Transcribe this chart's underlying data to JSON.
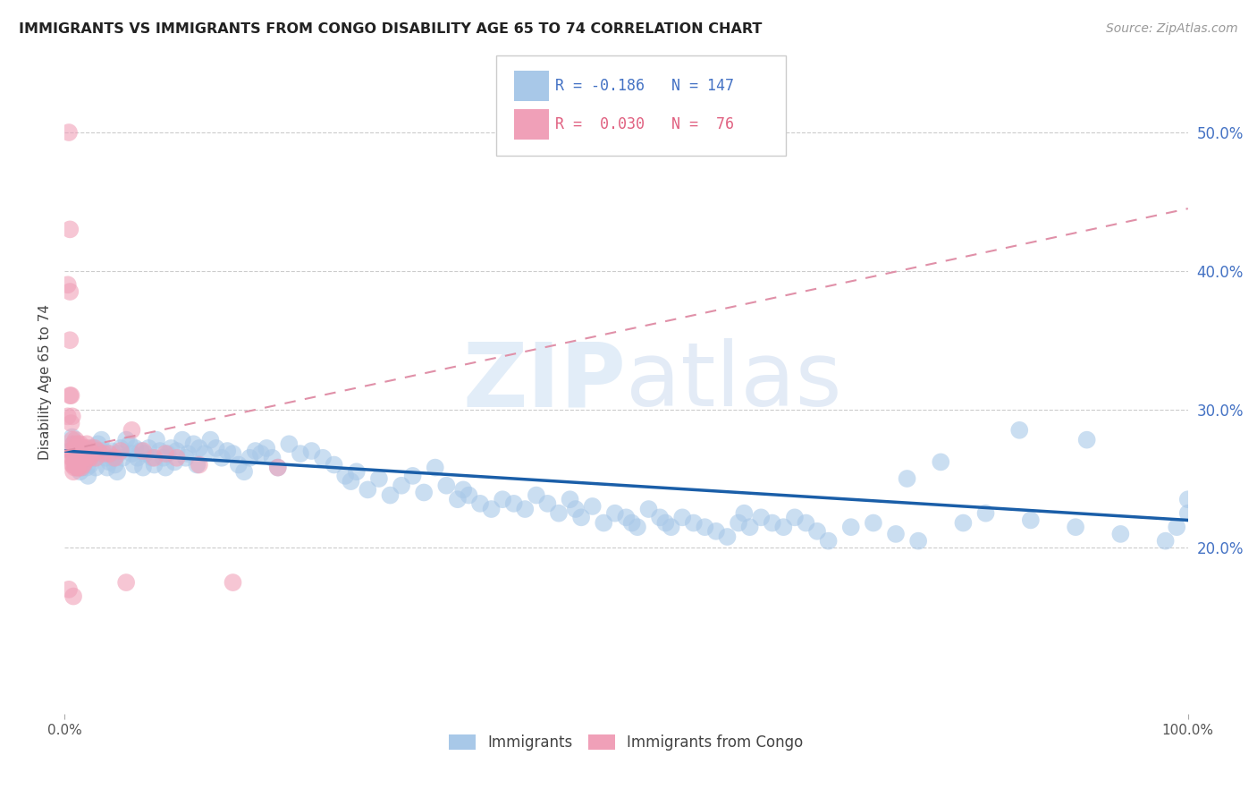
{
  "title": "IMMIGRANTS VS IMMIGRANTS FROM CONGO DISABILITY AGE 65 TO 74 CORRELATION CHART",
  "source": "Source: ZipAtlas.com",
  "ylabel": "Disability Age 65 to 74",
  "xlim": [
    0.0,
    1.0
  ],
  "ylim": [
    0.08,
    0.56
  ],
  "y_ticks_right": [
    0.2,
    0.3,
    0.4,
    0.5
  ],
  "y_tick_labels_right": [
    "20.0%",
    "30.0%",
    "40.0%",
    "50.0%"
  ],
  "color_immigrants": "#a8c8e8",
  "color_congo": "#f0a0b8",
  "line_color_immigrants": "#1a5ea8",
  "line_color_congo": "#e8a0b0",
  "background_color": "#ffffff",
  "watermark_text": "ZIPatlas",
  "r_immigrants": -0.186,
  "n_immigrants": 147,
  "r_congo": 0.03,
  "n_congo": 76,
  "immigrants_x": [
    0.005,
    0.007,
    0.008,
    0.009,
    0.01,
    0.011,
    0.012,
    0.013,
    0.014,
    0.015,
    0.016,
    0.017,
    0.018,
    0.019,
    0.02,
    0.021,
    0.022,
    0.023,
    0.025,
    0.027,
    0.028,
    0.03,
    0.032,
    0.033,
    0.035,
    0.037,
    0.038,
    0.04,
    0.042,
    0.043,
    0.045,
    0.047,
    0.048,
    0.05,
    0.052,
    0.055,
    0.058,
    0.06,
    0.062,
    0.063,
    0.065,
    0.068,
    0.07,
    0.072,
    0.075,
    0.078,
    0.08,
    0.082,
    0.085,
    0.088,
    0.09,
    0.092,
    0.095,
    0.098,
    0.1,
    0.105,
    0.108,
    0.11,
    0.115,
    0.118,
    0.12,
    0.125,
    0.13,
    0.135,
    0.14,
    0.145,
    0.15,
    0.155,
    0.16,
    0.165,
    0.17,
    0.175,
    0.18,
    0.185,
    0.19,
    0.2,
    0.21,
    0.22,
    0.23,
    0.24,
    0.25,
    0.255,
    0.26,
    0.27,
    0.28,
    0.29,
    0.3,
    0.31,
    0.32,
    0.33,
    0.34,
    0.35,
    0.355,
    0.36,
    0.37,
    0.38,
    0.39,
    0.4,
    0.41,
    0.42,
    0.43,
    0.44,
    0.45,
    0.455,
    0.46,
    0.47,
    0.48,
    0.49,
    0.5,
    0.505,
    0.51,
    0.52,
    0.53,
    0.535,
    0.54,
    0.55,
    0.56,
    0.57,
    0.58,
    0.59,
    0.6,
    0.605,
    0.61,
    0.62,
    0.63,
    0.64,
    0.65,
    0.66,
    0.67,
    0.68,
    0.7,
    0.72,
    0.74,
    0.76,
    0.8,
    0.82,
    0.86,
    0.9,
    0.94,
    0.98,
    0.99,
    1.0,
    1.0,
    0.85,
    0.78,
    0.91,
    0.75
  ],
  "immigrants_y": [
    0.27,
    0.28,
    0.275,
    0.265,
    0.26,
    0.268,
    0.272,
    0.26,
    0.255,
    0.268,
    0.258,
    0.265,
    0.27,
    0.262,
    0.258,
    0.252,
    0.268,
    0.26,
    0.272,
    0.265,
    0.258,
    0.275,
    0.268,
    0.278,
    0.27,
    0.265,
    0.258,
    0.262,
    0.27,
    0.265,
    0.26,
    0.255,
    0.268,
    0.272,
    0.265,
    0.278,
    0.275,
    0.268,
    0.26,
    0.272,
    0.265,
    0.27,
    0.258,
    0.268,
    0.272,
    0.265,
    0.26,
    0.278,
    0.27,
    0.265,
    0.258,
    0.268,
    0.272,
    0.262,
    0.27,
    0.278,
    0.265,
    0.268,
    0.275,
    0.26,
    0.272,
    0.268,
    0.278,
    0.272,
    0.265,
    0.27,
    0.268,
    0.26,
    0.255,
    0.265,
    0.27,
    0.268,
    0.272,
    0.265,
    0.258,
    0.275,
    0.268,
    0.27,
    0.265,
    0.26,
    0.252,
    0.248,
    0.255,
    0.242,
    0.25,
    0.238,
    0.245,
    0.252,
    0.24,
    0.258,
    0.245,
    0.235,
    0.242,
    0.238,
    0.232,
    0.228,
    0.235,
    0.232,
    0.228,
    0.238,
    0.232,
    0.225,
    0.235,
    0.228,
    0.222,
    0.23,
    0.218,
    0.225,
    0.222,
    0.218,
    0.215,
    0.228,
    0.222,
    0.218,
    0.215,
    0.222,
    0.218,
    0.215,
    0.212,
    0.208,
    0.218,
    0.225,
    0.215,
    0.222,
    0.218,
    0.215,
    0.222,
    0.218,
    0.212,
    0.205,
    0.215,
    0.218,
    0.21,
    0.205,
    0.218,
    0.225,
    0.22,
    0.215,
    0.21,
    0.205,
    0.215,
    0.225,
    0.235,
    0.285,
    0.262,
    0.278,
    0.25
  ],
  "congo_x": [
    0.003,
    0.004,
    0.005,
    0.005,
    0.005,
    0.005,
    0.006,
    0.006,
    0.006,
    0.007,
    0.007,
    0.007,
    0.007,
    0.008,
    0.008,
    0.008,
    0.008,
    0.009,
    0.009,
    0.009,
    0.01,
    0.01,
    0.01,
    0.01,
    0.011,
    0.011,
    0.011,
    0.012,
    0.012,
    0.012,
    0.012,
    0.013,
    0.013,
    0.013,
    0.014,
    0.014,
    0.015,
    0.015,
    0.015,
    0.016,
    0.016,
    0.017,
    0.017,
    0.018,
    0.018,
    0.019,
    0.019,
    0.02,
    0.02,
    0.021,
    0.022,
    0.022,
    0.023,
    0.023,
    0.025,
    0.027,
    0.028,
    0.03,
    0.035,
    0.04,
    0.045,
    0.05,
    0.055,
    0.06,
    0.07,
    0.08,
    0.09,
    0.1,
    0.12,
    0.15,
    0.19,
    0.003,
    0.004,
    0.006,
    0.008,
    0.01
  ],
  "congo_y": [
    0.295,
    0.5,
    0.43,
    0.385,
    0.35,
    0.31,
    0.31,
    0.29,
    0.27,
    0.295,
    0.278,
    0.265,
    0.26,
    0.275,
    0.268,
    0.26,
    0.255,
    0.272,
    0.265,
    0.258,
    0.278,
    0.27,
    0.265,
    0.26,
    0.272,
    0.265,
    0.258,
    0.275,
    0.268,
    0.262,
    0.258,
    0.272,
    0.265,
    0.258,
    0.275,
    0.268,
    0.27,
    0.265,
    0.258,
    0.272,
    0.265,
    0.268,
    0.26,
    0.27,
    0.262,
    0.272,
    0.265,
    0.275,
    0.268,
    0.268,
    0.272,
    0.265,
    0.27,
    0.265,
    0.268,
    0.272,
    0.265,
    0.27,
    0.268,
    0.268,
    0.265,
    0.27,
    0.175,
    0.285,
    0.27,
    0.265,
    0.268,
    0.265,
    0.26,
    0.175,
    0.258,
    0.39,
    0.17,
    0.265,
    0.165,
    0.27
  ],
  "line_imm_x0": 0.0,
  "line_imm_y0": 0.27,
  "line_imm_x1": 1.0,
  "line_imm_y1": 0.22,
  "line_congo_x0": 0.0,
  "line_congo_y0": 0.27,
  "line_congo_x1": 1.0,
  "line_congo_y1": 0.445
}
